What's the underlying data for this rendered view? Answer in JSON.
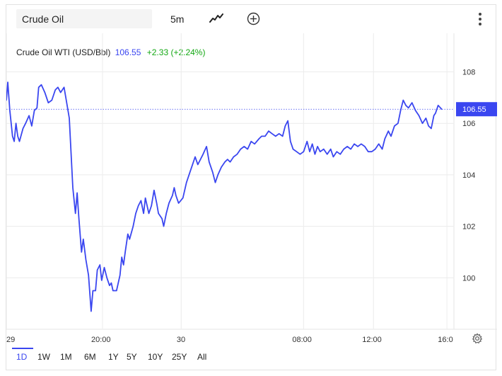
{
  "toolbar": {
    "symbol_value": "Crude Oil",
    "interval_label": "5m",
    "chart_type_icon": "line-chart-icon",
    "compare_icon": "plus-circle-icon",
    "menu_icon": "vertical-dots-icon"
  },
  "legend": {
    "name": "Crude Oil WTI (USD/Bbl)",
    "price": "106.55",
    "change": "+2.33 (+2.24%)"
  },
  "colors": {
    "line": "#3a46f0",
    "positive": "#14a814",
    "grid": "#ececec",
    "price_tag_bg": "#3a46f0"
  },
  "settings_icon": "gear-icon",
  "ranges": [
    "1D",
    "1W",
    "1M",
    "6M",
    "1Y",
    "5Y",
    "10Y",
    "25Y",
    "All"
  ],
  "active_range": "1D",
  "chart_data": {
    "type": "line",
    "title": "Crude Oil WTI (USD/Bbl)",
    "xlabel": "",
    "ylabel": "",
    "ylim": [
      98.0,
      109.5
    ],
    "y_ticks": [
      "108",
      "106",
      "104",
      "102",
      "100"
    ],
    "y_tick_values": [
      108,
      106,
      104,
      102,
      100
    ],
    "x_ticks": [
      "29",
      "20:00",
      "30",
      "08:00",
      "12:00",
      "16:0"
    ],
    "x_tick_values": [
      0,
      5.5,
      10,
      17,
      21,
      25.2
    ],
    "last_price_label": "106.55",
    "last_price": 106.55,
    "grid": true,
    "legend_position": "top-left",
    "series": [
      {
        "name": "Crude Oil WTI (USD/Bbl)",
        "points": [
          [
            0.0,
            106.9
          ],
          [
            0.08,
            107.6
          ],
          [
            0.2,
            106.5
          ],
          [
            0.35,
            105.5
          ],
          [
            0.45,
            105.3
          ],
          [
            0.55,
            106.0
          ],
          [
            0.65,
            105.5
          ],
          [
            0.75,
            105.3
          ],
          [
            0.95,
            105.8
          ],
          [
            1.1,
            106.0
          ],
          [
            1.3,
            106.3
          ],
          [
            1.45,
            105.9
          ],
          [
            1.6,
            106.5
          ],
          [
            1.75,
            106.6
          ],
          [
            1.85,
            107.4
          ],
          [
            2.0,
            107.5
          ],
          [
            2.2,
            107.2
          ],
          [
            2.4,
            106.8
          ],
          [
            2.6,
            106.9
          ],
          [
            2.8,
            107.3
          ],
          [
            2.95,
            107.4
          ],
          [
            3.1,
            107.2
          ],
          [
            3.3,
            107.4
          ],
          [
            3.4,
            107.0
          ],
          [
            3.6,
            106.2
          ],
          [
            3.8,
            103.5
          ],
          [
            3.95,
            102.5
          ],
          [
            4.05,
            103.3
          ],
          [
            4.15,
            102.3
          ],
          [
            4.3,
            101.0
          ],
          [
            4.4,
            101.5
          ],
          [
            4.55,
            100.7
          ],
          [
            4.7,
            100.1
          ],
          [
            4.85,
            98.7
          ],
          [
            4.95,
            99.5
          ],
          [
            5.1,
            99.5
          ],
          [
            5.2,
            100.3
          ],
          [
            5.35,
            100.5
          ],
          [
            5.45,
            99.9
          ],
          [
            5.6,
            100.4
          ],
          [
            5.75,
            100.0
          ],
          [
            5.9,
            99.7
          ],
          [
            6.0,
            99.8
          ],
          [
            6.1,
            99.5
          ],
          [
            6.3,
            99.5
          ],
          [
            6.5,
            100.1
          ],
          [
            6.6,
            100.8
          ],
          [
            6.7,
            100.5
          ],
          [
            6.8,
            101.0
          ],
          [
            6.95,
            101.7
          ],
          [
            7.05,
            101.5
          ],
          [
            7.25,
            102.0
          ],
          [
            7.4,
            102.5
          ],
          [
            7.55,
            102.8
          ],
          [
            7.7,
            103.0
          ],
          [
            7.85,
            102.5
          ],
          [
            7.95,
            103.1
          ],
          [
            8.15,
            102.5
          ],
          [
            8.3,
            102.8
          ],
          [
            8.45,
            103.4
          ],
          [
            8.6,
            102.9
          ],
          [
            8.7,
            102.5
          ],
          [
            8.9,
            102.3
          ],
          [
            9.0,
            102.0
          ],
          [
            9.15,
            102.5
          ],
          [
            9.3,
            102.9
          ],
          [
            9.5,
            103.2
          ],
          [
            9.6,
            103.5
          ],
          [
            9.7,
            103.2
          ],
          [
            9.85,
            102.9
          ],
          [
            10.1,
            103.1
          ],
          [
            10.3,
            103.7
          ],
          [
            10.5,
            104.1
          ],
          [
            10.65,
            104.4
          ],
          [
            10.8,
            104.7
          ],
          [
            10.95,
            104.4
          ],
          [
            11.1,
            104.6
          ],
          [
            11.25,
            104.8
          ],
          [
            11.45,
            105.1
          ],
          [
            11.6,
            104.5
          ],
          [
            11.8,
            104.1
          ],
          [
            11.95,
            103.7
          ],
          [
            12.1,
            104.0
          ],
          [
            12.3,
            104.3
          ],
          [
            12.5,
            104.5
          ],
          [
            12.65,
            104.6
          ],
          [
            12.8,
            104.5
          ],
          [
            13.0,
            104.7
          ],
          [
            13.2,
            104.8
          ],
          [
            13.4,
            105.0
          ],
          [
            13.6,
            105.1
          ],
          [
            13.8,
            105.0
          ],
          [
            14.0,
            105.3
          ],
          [
            14.2,
            105.2
          ],
          [
            14.45,
            105.4
          ],
          [
            14.6,
            105.5
          ],
          [
            14.8,
            105.5
          ],
          [
            15.0,
            105.7
          ],
          [
            15.2,
            105.6
          ],
          [
            15.4,
            105.5
          ],
          [
            15.6,
            105.6
          ],
          [
            15.8,
            105.5
          ],
          [
            15.95,
            105.9
          ],
          [
            16.1,
            106.1
          ],
          [
            16.25,
            105.3
          ],
          [
            16.4,
            105.0
          ],
          [
            16.6,
            104.9
          ],
          [
            16.8,
            104.8
          ],
          [
            17.0,
            104.9
          ],
          [
            17.2,
            105.3
          ],
          [
            17.35,
            104.9
          ],
          [
            17.5,
            105.2
          ],
          [
            17.65,
            104.8
          ],
          [
            17.8,
            105.1
          ],
          [
            17.95,
            104.9
          ],
          [
            18.15,
            105.0
          ],
          [
            18.35,
            104.8
          ],
          [
            18.55,
            105.0
          ],
          [
            18.7,
            104.7
          ],
          [
            18.9,
            104.9
          ],
          [
            19.1,
            104.8
          ],
          [
            19.3,
            105.0
          ],
          [
            19.5,
            105.1
          ],
          [
            19.7,
            105.0
          ],
          [
            19.9,
            105.2
          ],
          [
            20.1,
            105.1
          ],
          [
            20.3,
            105.2
          ],
          [
            20.5,
            105.1
          ],
          [
            20.7,
            104.9
          ],
          [
            20.9,
            104.9
          ],
          [
            21.1,
            105.0
          ],
          [
            21.3,
            105.2
          ],
          [
            21.5,
            105.0
          ],
          [
            21.65,
            105.4
          ],
          [
            21.85,
            105.7
          ],
          [
            22.0,
            105.5
          ],
          [
            22.2,
            105.9
          ],
          [
            22.4,
            106.0
          ],
          [
            22.55,
            106.5
          ],
          [
            22.7,
            106.9
          ],
          [
            22.85,
            106.7
          ],
          [
            23.0,
            106.6
          ],
          [
            23.2,
            106.8
          ],
          [
            23.4,
            106.5
          ],
          [
            23.6,
            106.3
          ],
          [
            23.8,
            106.0
          ],
          [
            24.0,
            106.2
          ],
          [
            24.15,
            105.9
          ],
          [
            24.3,
            105.8
          ],
          [
            24.45,
            106.3
          ],
          [
            24.55,
            106.4
          ],
          [
            24.7,
            106.7
          ],
          [
            24.9,
            106.55
          ]
        ]
      }
    ],
    "x_range": [
      0,
      25.6
    ]
  }
}
